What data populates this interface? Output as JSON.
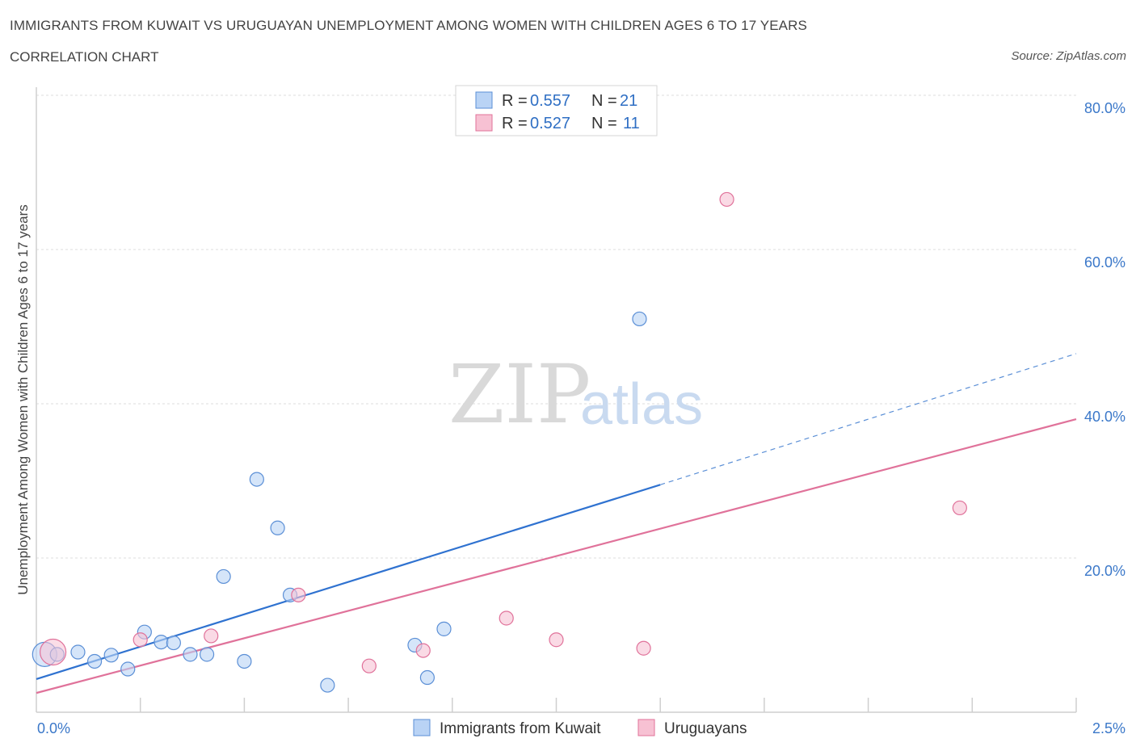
{
  "header": {
    "title": "IMMIGRANTS FROM KUWAIT VS URUGUAYAN UNEMPLOYMENT AMONG WOMEN WITH CHILDREN AGES 6 TO 17 YEARS",
    "subtitle": "CORRELATION CHART",
    "source": "Source: ZipAtlas.com"
  },
  "watermark": {
    "zip": "ZIP",
    "atlas": "atlas"
  },
  "legend": {
    "series": [
      {
        "r_label": "R = ",
        "r_value": "0.557",
        "n_label": "N = ",
        "n_value": "21",
        "color": "#b9d3f5"
      },
      {
        "r_label": "R = ",
        "r_value": "0.527",
        "n_label": "N = ",
        "n_value": "11",
        "color": "#f7c1d3"
      }
    ]
  },
  "bottom_legend": {
    "items": [
      {
        "label": "Immigrants from Kuwait",
        "color": "#b9d3f5"
      },
      {
        "label": "Uruguayans",
        "color": "#f7c1d3"
      }
    ]
  },
  "chart_data": {
    "type": "scatter",
    "title": "IMMIGRANTS FROM KUWAIT VS URUGUAYAN UNEMPLOYMENT AMONG WOMEN WITH CHILDREN AGES 6 TO 17 YEARS",
    "subtitle": "CORRELATION CHART",
    "xlabel": "",
    "ylabel": "Unemployment Among Women with Children Ages 6 to 17 years",
    "xlim": [
      0,
      2.5
    ],
    "ylim": [
      0,
      80
    ],
    "x_tick_labels": [
      "0.0%",
      "2.5%"
    ],
    "y_ticks": [
      20,
      40,
      60,
      80
    ],
    "y_tick_labels": [
      "20.0%",
      "40.0%",
      "60.0%",
      "80.0%"
    ],
    "grid": true,
    "legend_placement": "top-center",
    "series": [
      {
        "name": "Immigrants from Kuwait",
        "color": "#5b8fd6",
        "fill": "#b9d3f5",
        "points": [
          [
            0.02,
            7.5
          ],
          [
            0.05,
            7.5
          ],
          [
            0.1,
            7.8
          ],
          [
            0.14,
            6.6
          ],
          [
            0.18,
            7.4
          ],
          [
            0.22,
            5.6
          ],
          [
            0.26,
            10.4
          ],
          [
            0.3,
            9.1
          ],
          [
            0.33,
            9.0
          ],
          [
            0.37,
            7.5
          ],
          [
            0.41,
            7.5
          ],
          [
            0.45,
            17.6
          ],
          [
            0.5,
            6.6
          ],
          [
            0.53,
            30.2
          ],
          [
            0.58,
            23.9
          ],
          [
            0.61,
            15.2
          ],
          [
            0.7,
            3.5
          ],
          [
            0.91,
            8.7
          ],
          [
            0.94,
            4.5
          ],
          [
            0.98,
            10.8
          ],
          [
            1.45,
            51.0
          ]
        ],
        "trend": {
          "x0": 0.0,
          "y0": 4.3,
          "x1": 1.5,
          "y1": 29.5,
          "dashed_to_x": 2.5,
          "dashed_to_y": 46.5
        }
      },
      {
        "name": "Uruguayans",
        "color": "#e0729a",
        "fill": "#f7c1d3",
        "points": [
          [
            0.04,
            7.8
          ],
          [
            0.25,
            9.4
          ],
          [
            0.42,
            9.9
          ],
          [
            0.63,
            15.2
          ],
          [
            0.8,
            6.0
          ],
          [
            0.93,
            8.0
          ],
          [
            1.13,
            12.2
          ],
          [
            1.25,
            9.4
          ],
          [
            1.46,
            8.3
          ],
          [
            1.66,
            66.5
          ],
          [
            2.22,
            26.5
          ]
        ],
        "trend": {
          "x0": 0.0,
          "y0": 2.5,
          "x1": 2.5,
          "y1": 38.0
        }
      }
    ]
  }
}
